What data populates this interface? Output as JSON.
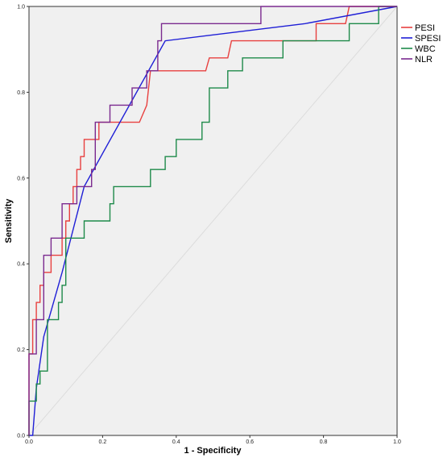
{
  "chart_data": {
    "type": "line",
    "title": "",
    "xlabel": "1 - Specificity",
    "ylabel": "Sensitivity",
    "xlim": [
      0,
      1
    ],
    "ylim": [
      0,
      1
    ],
    "x_ticks": [
      "0.0",
      "0.2",
      "0.4",
      "0.6",
      "0.8",
      "1.0"
    ],
    "y_ticks": [
      "0.0",
      "0.2",
      "0.4",
      "0.6",
      "0.8",
      "1.0"
    ],
    "grid": false,
    "legend_position": "top-right",
    "series": [
      {
        "name": "PESI",
        "color": "#e8403f",
        "points": [
          [
            0,
            0
          ],
          [
            0,
            0.19
          ],
          [
            0.01,
            0.19
          ],
          [
            0.01,
            0.27
          ],
          [
            0.02,
            0.27
          ],
          [
            0.02,
            0.31
          ],
          [
            0.03,
            0.31
          ],
          [
            0.03,
            0.35
          ],
          [
            0.04,
            0.35
          ],
          [
            0.04,
            0.38
          ],
          [
            0.06,
            0.38
          ],
          [
            0.06,
            0.42
          ],
          [
            0.09,
            0.42
          ],
          [
            0.09,
            0.46
          ],
          [
            0.1,
            0.46
          ],
          [
            0.1,
            0.5
          ],
          [
            0.11,
            0.5
          ],
          [
            0.11,
            0.54
          ],
          [
            0.12,
            0.54
          ],
          [
            0.12,
            0.58
          ],
          [
            0.13,
            0.58
          ],
          [
            0.13,
            0.62
          ],
          [
            0.14,
            0.62
          ],
          [
            0.14,
            0.65
          ],
          [
            0.15,
            0.65
          ],
          [
            0.15,
            0.69
          ],
          [
            0.19,
            0.69
          ],
          [
            0.19,
            0.73
          ],
          [
            0.3,
            0.73
          ],
          [
            0.32,
            0.77
          ],
          [
            0.33,
            0.85
          ],
          [
            0.48,
            0.85
          ],
          [
            0.49,
            0.88
          ],
          [
            0.54,
            0.88
          ],
          [
            0.55,
            0.92
          ],
          [
            0.78,
            0.92
          ],
          [
            0.78,
            0.96
          ],
          [
            0.86,
            0.96
          ],
          [
            0.87,
            1
          ],
          [
            1,
            1
          ]
        ]
      },
      {
        "name": "SPESI",
        "color": "#1f1fd6",
        "points": [
          [
            0,
            0
          ],
          [
            0.01,
            0
          ],
          [
            0.02,
            0.11
          ],
          [
            0.04,
            0.23
          ],
          [
            0.09,
            0.38
          ],
          [
            0.15,
            0.58
          ],
          [
            0.37,
            0.92
          ],
          [
            0.75,
            0.96
          ],
          [
            1,
            1
          ]
        ]
      },
      {
        "name": "WBC",
        "color": "#1e8a4a",
        "points": [
          [
            0,
            0
          ],
          [
            0,
            0.08
          ],
          [
            0.02,
            0.08
          ],
          [
            0.02,
            0.12
          ],
          [
            0.03,
            0.12
          ],
          [
            0.03,
            0.15
          ],
          [
            0.05,
            0.15
          ],
          [
            0.05,
            0.27
          ],
          [
            0.08,
            0.27
          ],
          [
            0.08,
            0.31
          ],
          [
            0.09,
            0.31
          ],
          [
            0.09,
            0.35
          ],
          [
            0.1,
            0.35
          ],
          [
            0.1,
            0.46
          ],
          [
            0.15,
            0.46
          ],
          [
            0.15,
            0.5
          ],
          [
            0.22,
            0.5
          ],
          [
            0.22,
            0.54
          ],
          [
            0.23,
            0.54
          ],
          [
            0.23,
            0.58
          ],
          [
            0.33,
            0.58
          ],
          [
            0.33,
            0.62
          ],
          [
            0.37,
            0.62
          ],
          [
            0.37,
            0.65
          ],
          [
            0.4,
            0.65
          ],
          [
            0.4,
            0.69
          ],
          [
            0.47,
            0.69
          ],
          [
            0.47,
            0.73
          ],
          [
            0.49,
            0.73
          ],
          [
            0.49,
            0.81
          ],
          [
            0.54,
            0.81
          ],
          [
            0.54,
            0.85
          ],
          [
            0.58,
            0.85
          ],
          [
            0.58,
            0.88
          ],
          [
            0.69,
            0.88
          ],
          [
            0.69,
            0.92
          ],
          [
            0.87,
            0.92
          ],
          [
            0.87,
            0.96
          ],
          [
            0.95,
            0.96
          ],
          [
            0.95,
            1
          ],
          [
            1,
            1
          ]
        ]
      },
      {
        "name": "NLR",
        "color": "#7b2a8f",
        "points": [
          [
            0,
            0
          ],
          [
            0,
            0.19
          ],
          [
            0.02,
            0.19
          ],
          [
            0.02,
            0.27
          ],
          [
            0.04,
            0.27
          ],
          [
            0.04,
            0.42
          ],
          [
            0.06,
            0.42
          ],
          [
            0.06,
            0.46
          ],
          [
            0.09,
            0.46
          ],
          [
            0.09,
            0.54
          ],
          [
            0.13,
            0.54
          ],
          [
            0.13,
            0.58
          ],
          [
            0.17,
            0.58
          ],
          [
            0.17,
            0.62
          ],
          [
            0.18,
            0.62
          ],
          [
            0.18,
            0.73
          ],
          [
            0.22,
            0.73
          ],
          [
            0.22,
            0.77
          ],
          [
            0.28,
            0.77
          ],
          [
            0.28,
            0.81
          ],
          [
            0.32,
            0.81
          ],
          [
            0.32,
            0.85
          ],
          [
            0.35,
            0.85
          ],
          [
            0.35,
            0.92
          ],
          [
            0.36,
            0.92
          ],
          [
            0.36,
            0.96
          ],
          [
            0.63,
            0.96
          ],
          [
            0.63,
            1
          ],
          [
            1,
            1
          ]
        ]
      }
    ]
  }
}
